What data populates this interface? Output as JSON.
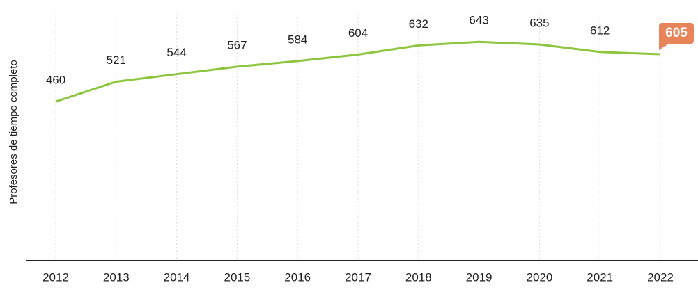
{
  "chart_data": {
    "type": "line",
    "y_label": "Profesores de tiempo completo",
    "categories": [
      "2012",
      "2013",
      "2014",
      "2015",
      "2016",
      "2017",
      "2018",
      "2019",
      "2020",
      "2021",
      "2022"
    ],
    "series": [
      {
        "name": "Profesores de tiempo completo",
        "color": "#8cc63e",
        "values": [
          460,
          521,
          544,
          567,
          584,
          604,
          632,
          643,
          635,
          612,
          605
        ]
      }
    ],
    "ylim": [
      0,
      750
    ],
    "highlight_index": 10,
    "highlight_color": "#e8845a"
  }
}
